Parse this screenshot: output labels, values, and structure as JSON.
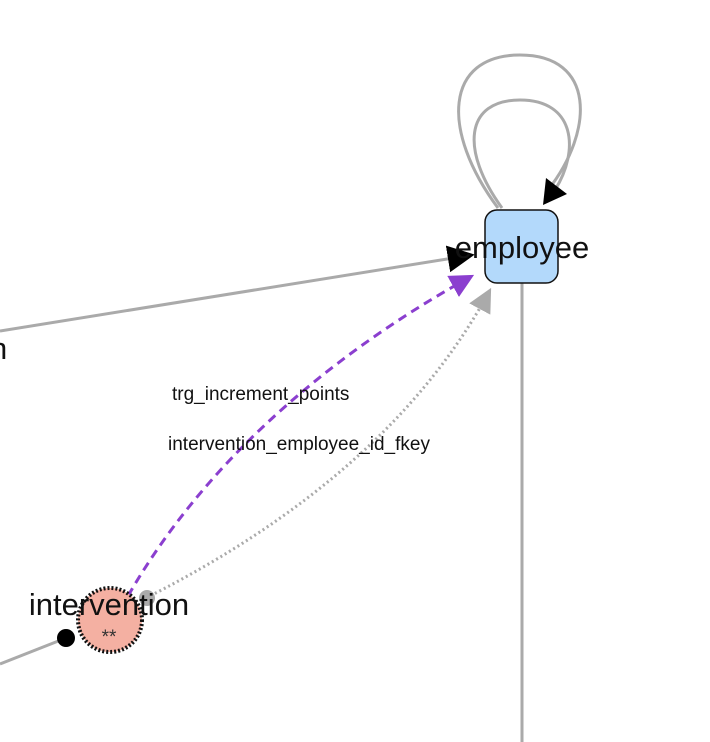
{
  "nodes": {
    "employee": {
      "label": "employee",
      "fill": "#b3d9fb",
      "stroke": "#111111"
    },
    "intervention": {
      "label": "intervention",
      "sublabel": "**",
      "fill": "#f4b0a2",
      "stroke": "#111111"
    },
    "offscreen_left": {
      "label": "n"
    }
  },
  "edges": {
    "trigger": {
      "label": "trg_increment_points",
      "color": "#8b3fcf",
      "style": "dashed"
    },
    "fkey": {
      "label": "intervention_employee_id_fkey",
      "color": "#aaaaaa",
      "style": "dotted"
    },
    "plain_color": "#aaaaaa"
  }
}
